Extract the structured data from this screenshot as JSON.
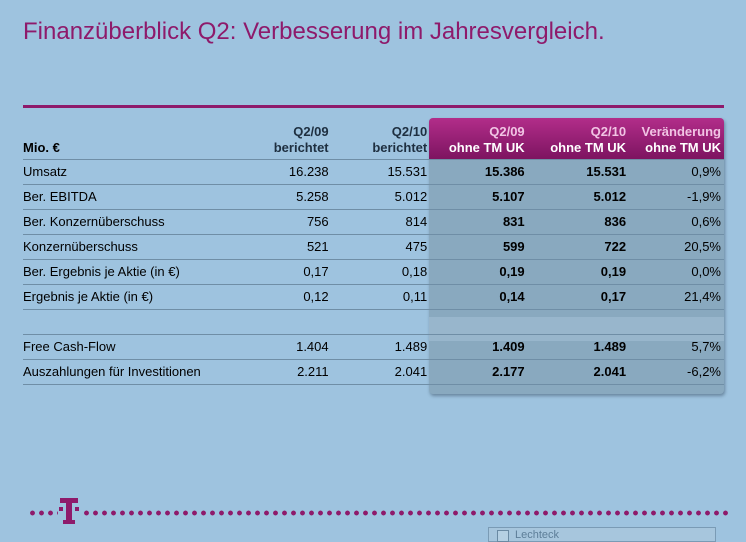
{
  "title": "Finanzüberblick Q2: Verbesserung im Jahresvergleich.",
  "colors": {
    "accent": "#8e1a6b",
    "background": "#9ec3df",
    "highlight_header": "#a0237a"
  },
  "table": {
    "headers": {
      "label": "Mio. €",
      "c1": {
        "line1": "Q2/09",
        "line2": "berichtet"
      },
      "c2": {
        "line1": "Q2/10",
        "line2": "berichtet"
      },
      "c3": {
        "line1": "Q2/09",
        "line2": "ohne TM UK"
      },
      "c4": {
        "line1": "Q2/10",
        "line2": "ohne TM UK"
      },
      "c5": {
        "line1": "Veränderung",
        "line2": "ohne TM UK"
      }
    },
    "rows": [
      {
        "label": "Umsatz",
        "c1": "16.238",
        "c2": "15.531",
        "c3": "15.386",
        "c4": "15.531",
        "c5": "0,9%"
      },
      {
        "label": "Ber. EBITDA",
        "c1": "5.258",
        "c2": "5.012",
        "c3": "5.107",
        "c4": "5.012",
        "c5": "-1,9%"
      },
      {
        "label": "Ber. Konzernüberschuss",
        "c1": "756",
        "c2": "814",
        "c3": "831",
        "c4": "836",
        "c5": "0,6%"
      },
      {
        "label": "Konzernüberschuss",
        "c1": "521",
        "c2": "475",
        "c3": "599",
        "c4": "722",
        "c5": "20,5%"
      },
      {
        "label": "Ber. Ergebnis je Aktie (in €)",
        "c1": "0,17",
        "c2": "0,18",
        "c3": "0,19",
        "c4": "0,19",
        "c5": "0,0%"
      },
      {
        "label": "Ergebnis je Aktie (in €)",
        "c1": "0,12",
        "c2": "0,11",
        "c3": "0,14",
        "c4": "0,17",
        "c5": "21,4%"
      },
      {
        "label": "Free Cash-Flow",
        "c1": "1.404",
        "c2": "1.489",
        "c3": "1.409",
        "c4": "1.489",
        "c5": "5,7%"
      },
      {
        "label": "Auszahlungen für Investitionen",
        "c1": "2.211",
        "c2": "2.041",
        "c3": "2.177",
        "c4": "2.041",
        "c5": "-6,2%"
      }
    ]
  },
  "footer": {
    "logo": "telekom-t-logo",
    "overlay_text": "Lechteck"
  }
}
